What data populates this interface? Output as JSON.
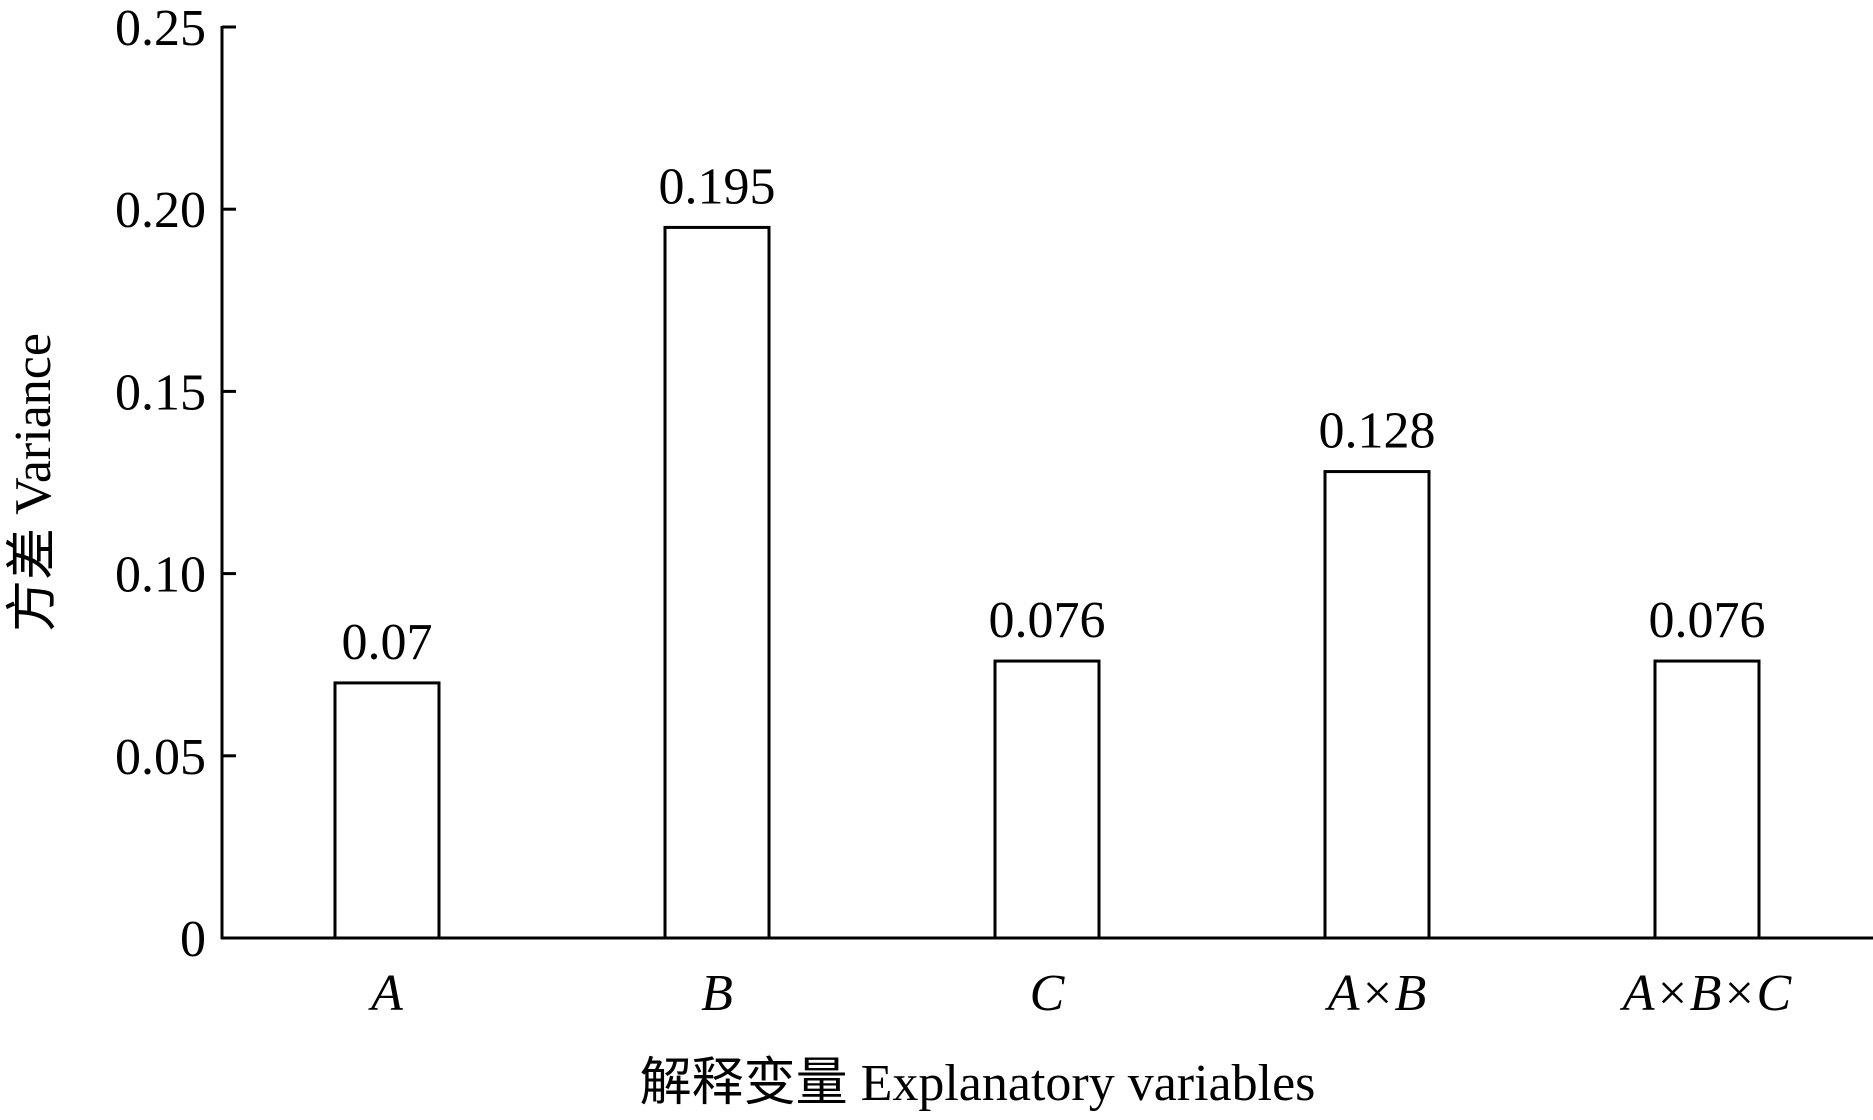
{
  "chart_data": {
    "type": "bar",
    "title": "",
    "xlabel": "解释变量  Explanatory variables",
    "ylabel": "方差  Variance",
    "categories": [
      "A",
      "B",
      "C",
      "A×B",
      "A×B×C"
    ],
    "values": [
      0.07,
      0.195,
      0.076,
      0.128,
      0.076
    ],
    "value_labels": [
      "0.07",
      "0.195",
      "0.076",
      "0.128",
      "0.076"
    ],
    "ylim": [
      0,
      0.25
    ],
    "yticks": [
      0,
      0.05,
      0.1,
      0.15,
      0.2,
      0.25
    ],
    "ytick_labels": [
      "0",
      "0.05",
      "0.10",
      "0.15",
      "0.20",
      "0.25"
    ],
    "grid": false,
    "legend": "none",
    "colors": {
      "bar_fill": "#ffffff",
      "bar_stroke": "#000000",
      "axis": "#000000"
    }
  }
}
